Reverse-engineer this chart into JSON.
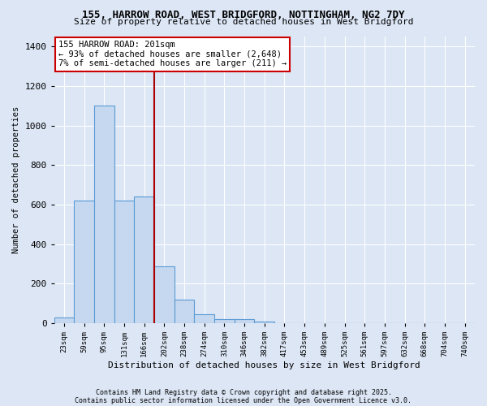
{
  "title1": "155, HARROW ROAD, WEST BRIDGFORD, NOTTINGHAM, NG2 7DY",
  "title2": "Size of property relative to detached houses in West Bridgford",
  "xlabel": "Distribution of detached houses by size in West Bridgford",
  "ylabel": "Number of detached properties",
  "categories": [
    "23sqm",
    "59sqm",
    "95sqm",
    "131sqm",
    "166sqm",
    "202sqm",
    "238sqm",
    "274sqm",
    "310sqm",
    "346sqm",
    "382sqm",
    "417sqm",
    "453sqm",
    "489sqm",
    "525sqm",
    "561sqm",
    "597sqm",
    "632sqm",
    "668sqm",
    "704sqm",
    "740sqm"
  ],
  "values": [
    30,
    620,
    1100,
    620,
    640,
    290,
    120,
    45,
    20,
    20,
    10,
    0,
    0,
    0,
    0,
    0,
    0,
    0,
    0,
    0,
    0
  ],
  "bar_color": "#c5d8ef",
  "bar_edge_color": "#5b9bd5",
  "vline_x_index": 5,
  "vline_color": "#aa0000",
  "annotation_text": "155 HARROW ROAD: 201sqm\n← 93% of detached houses are smaller (2,648)\n7% of semi-detached houses are larger (211) →",
  "annotation_box_color": "white",
  "annotation_box_edge": "#cc0000",
  "ylim": [
    0,
    1450
  ],
  "yticks": [
    0,
    200,
    400,
    600,
    800,
    1000,
    1200,
    1400
  ],
  "background_color": "#dce6f5",
  "grid_color": "white",
  "footnote1": "Contains HM Land Registry data © Crown copyright and database right 2025.",
  "footnote2": "Contains public sector information licensed under the Open Government Licence v3.0."
}
